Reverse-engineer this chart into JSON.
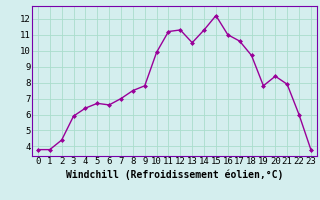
{
  "x": [
    0,
    1,
    2,
    3,
    4,
    5,
    6,
    7,
    8,
    9,
    10,
    11,
    12,
    13,
    14,
    15,
    16,
    17,
    18,
    19,
    20,
    21,
    22,
    23
  ],
  "y": [
    3.8,
    3.8,
    4.4,
    5.9,
    6.4,
    6.7,
    6.6,
    7.0,
    7.5,
    7.8,
    9.9,
    11.2,
    11.3,
    10.5,
    11.3,
    12.2,
    11.0,
    10.6,
    9.7,
    7.8,
    8.4,
    7.9,
    6.0,
    3.8
  ],
  "line_color": "#990099",
  "marker": "D",
  "marker_size": 2.0,
  "bg_color": "#d4eeee",
  "grid_color": "#aaddcc",
  "xlabel": "Windchill (Refroidissement éolien,°C)",
  "xlabel_fontsize": 7,
  "ylabel_ticks": [
    4,
    5,
    6,
    7,
    8,
    9,
    10,
    11,
    12
  ],
  "xlim": [
    -0.5,
    23.5
  ],
  "ylim": [
    3.4,
    12.8
  ],
  "xtick_labels": [
    "0",
    "1",
    "2",
    "3",
    "4",
    "5",
    "6",
    "7",
    "8",
    "9",
    "10",
    "11",
    "12",
    "13",
    "14",
    "15",
    "16",
    "17",
    "18",
    "19",
    "20",
    "21",
    "22",
    "23"
  ],
  "tick_fontsize": 6.5,
  "line_width": 1.0,
  "spine_color": "#7700aa"
}
